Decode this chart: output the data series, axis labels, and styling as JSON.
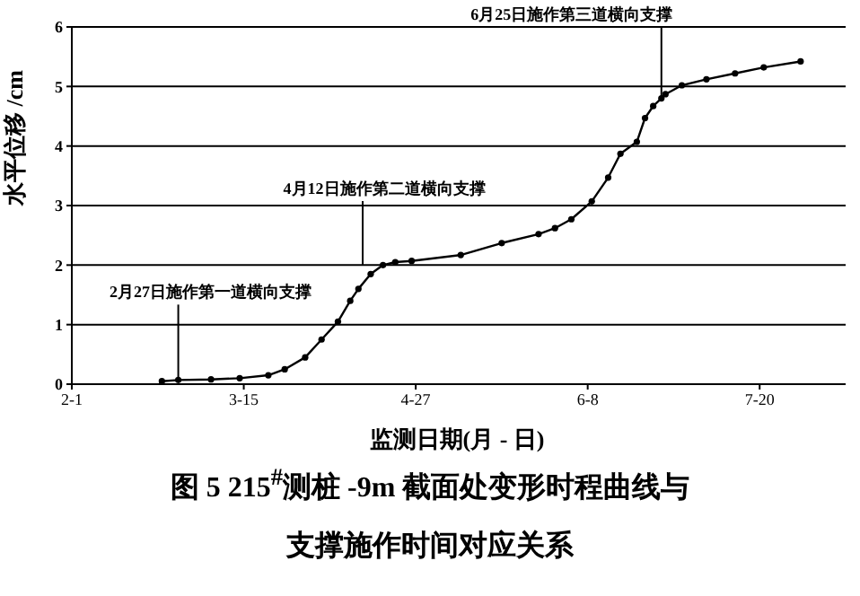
{
  "chart_data": {
    "type": "line",
    "title": "图 5 215$^{#}$测桩 -9m 截面处变形时程曲线与",
    "subtitle": "支撑施作时间对应关系",
    "xlabel": "监测日期(月 - 日)",
    "ylabel": "水平位移 /cm",
    "x": [
      "--02-23",
      "--02-27",
      "--03-07",
      "--03-14",
      "--03-21",
      "--03-25",
      "--03-30",
      "--04-03",
      "--04-07",
      "--04-10",
      "--04-12",
      "--04-15",
      "--04-18",
      "--04-21",
      "--04-25",
      "--05-07",
      "--05-17",
      "--05-26",
      "--05-30",
      "--06-03",
      "--06-08",
      "--06-12",
      "--06-15",
      "--06-19",
      "--06-21",
      "--06-23",
      "--06-25",
      "--06-26",
      "--06-30",
      "--07-06",
      "--07-13",
      "--07-20",
      "--07-29"
    ],
    "series": [
      {
        "color": "#000000",
        "values": [
          0.05,
          0.07,
          0.08,
          0.1,
          0.15,
          0.25,
          0.45,
          0.75,
          1.05,
          1.4,
          1.6,
          1.85,
          2.0,
          2.05,
          2.07,
          2.17,
          2.37,
          2.52,
          2.62,
          2.77,
          3.07,
          3.47,
          3.87,
          4.07,
          4.47,
          4.67,
          4.8,
          4.87,
          5.02,
          5.12,
          5.22,
          5.32,
          5.42
        ]
      }
    ],
    "xlim": [
      "--02-01",
      "--08-09"
    ],
    "xticks": [
      {
        "value": "--02-01",
        "label": "2-1"
      },
      {
        "value": "--03-15",
        "label": "3-15"
      },
      {
        "value": "--04-26",
        "label": "4-27"
      },
      {
        "value": "--06-07",
        "label": "6-8"
      },
      {
        "value": "--07-19",
        "label": "7-20"
      }
    ],
    "ylim": [
      0,
      6
    ],
    "yticks": [
      0,
      1,
      2,
      3,
      4,
      5,
      6
    ],
    "grid": "y",
    "legend": false,
    "marker": "circle",
    "line_style": "solid",
    "annotations": [
      {
        "text": "2月27日施作第一道横向支撑",
        "x": "--02-27",
        "y": 0.07
      },
      "4月12日施作第二道横向支撑",
      {
        "text": "6月25日施作第三道横向支撑",
        "x": "--06-25",
        "y": 4.8
      }
    ]
  }
}
